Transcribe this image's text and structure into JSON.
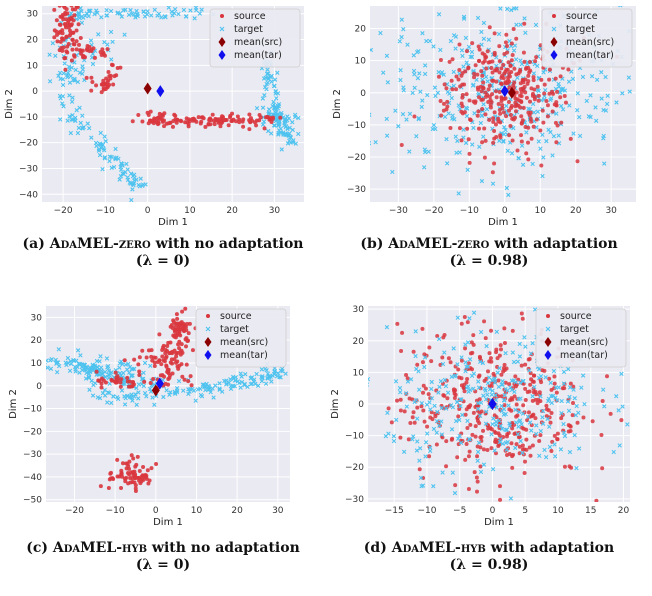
{
  "colors": {
    "source": "#d9363e",
    "target": "#4fc3ef",
    "mean_src": "#8b0000",
    "mean_tar": "#1010ee",
    "background": "#eaeaf2"
  },
  "legend_labels": [
    "source",
    "target",
    "mean(src)",
    "mean(tar)"
  ],
  "chart_data": [
    {
      "type": "scatter",
      "xlabel": "Dim 1",
      "ylabel": "Dim 2",
      "xlim": [
        -25,
        37
      ],
      "ylim": [
        -43,
        33
      ],
      "xticks": [
        -20,
        -10,
        0,
        10,
        20,
        30
      ],
      "yticks": [
        -40,
        -30,
        -20,
        -10,
        0,
        10,
        20,
        30
      ],
      "legend": "top-right",
      "mean_src": [
        0,
        1
      ],
      "mean_tar": [
        3,
        0
      ],
      "series": [
        {
          "name": "source",
          "clusters": [
            {
              "cx": -19,
              "cy": 24,
              "sx": 1.5,
              "sy": 6,
              "n": 80
            },
            {
              "cx": -14,
              "cy": 15,
              "sx": 3,
              "sy": 1.5,
              "n": 30
            },
            {
              "cx": -11,
              "cy": 3,
              "sx": 1.5,
              "sy": 2,
              "n": 25
            },
            {
              "cx": -8,
              "cy": 8,
              "sx": 1.2,
              "sy": 2,
              "n": 8
            },
            {
              "cx": 3,
              "cy": -10,
              "sx": 3,
              "sy": 2,
              "n": 20
            }
          ],
          "lines": [
            {
              "x0": 0,
              "y0": -12,
              "x1": 31,
              "y1": -11,
              "n": 110,
              "jitter": 1
            }
          ]
        },
        {
          "name": "target",
          "clusters": [
            {
              "cx": 31,
              "cy": -12,
              "sx": 2,
              "sy": 3,
              "n": 50
            },
            {
              "cx": -16,
              "cy": 29,
              "sx": 4,
              "sy": 1.2,
              "n": 20
            },
            {
              "cx": 5,
              "cy": 30,
              "sx": 5,
              "sy": 1.5,
              "n": 25
            }
          ],
          "lines": [
            {
              "x0": -15,
              "y0": 30,
              "x1": 0,
              "y1": 30,
              "n": 30,
              "jitter": 1.2
            },
            {
              "x0": -20,
              "y0": 20,
              "x1": -18,
              "y1": -10,
              "n": 45,
              "jitter": 1.6
            },
            {
              "x0": -18,
              "y0": -10,
              "x1": -2,
              "y1": -38,
              "n": 80,
              "jitter": 1.5
            },
            {
              "x0": -18,
              "y0": 5,
              "x1": -8,
              "y1": 22,
              "n": 25,
              "jitter": 2
            },
            {
              "x0": 28,
              "y0": 13,
              "x1": 31,
              "y1": -10,
              "n": 55,
              "jitter": 1
            },
            {
              "x0": 31,
              "y0": -10,
              "x1": 35,
              "y1": -22,
              "n": 30,
              "jitter": 1
            }
          ]
        }
      ]
    },
    {
      "type": "scatter",
      "xlabel": "Dim 1",
      "ylabel": "Dim 2",
      "xlim": [
        -38,
        37
      ],
      "ylim": [
        -34,
        27
      ],
      "xticks": [
        -30,
        -20,
        -10,
        0,
        10,
        20,
        30
      ],
      "yticks": [
        -30,
        -20,
        -10,
        0,
        10,
        20
      ],
      "legend": "top-right",
      "mean_src": [
        2,
        0
      ],
      "mean_tar": [
        0,
        0.5
      ],
      "series": [
        {
          "name": "source",
          "clusters": [
            {
              "cx": 0,
              "cy": 0,
              "sx": 9,
              "sy": 9,
              "n": 330
            }
          ],
          "lines": []
        },
        {
          "name": "target",
          "clusters": [
            {
              "cx": -2,
              "cy": 2,
              "sx": 18,
              "sy": 13,
              "n": 420
            }
          ],
          "lines": []
        }
      ]
    },
    {
      "type": "scatter",
      "xlabel": "Dim 1",
      "ylabel": "Dim 2",
      "xlim": [
        -27,
        33
      ],
      "ylim": [
        -51,
        35
      ],
      "xticks": [
        -20,
        -10,
        0,
        10,
        20,
        30
      ],
      "yticks": [
        -50,
        -40,
        -30,
        -20,
        -10,
        0,
        10,
        20,
        30
      ],
      "legend": "top-right",
      "mean_src": [
        0,
        -2
      ],
      "mean_tar": [
        1,
        1
      ],
      "series": [
        {
          "name": "source",
          "clusters": [
            {
              "cx": -6,
              "cy": -40,
              "sx": 2.5,
              "sy": 3.5,
              "n": 75
            },
            {
              "cx": 6,
              "cy": 25,
              "sx": 1.2,
              "sy": 4,
              "n": 55
            },
            {
              "cx": 4,
              "cy": 10,
              "sx": 2.5,
              "sy": 5,
              "n": 60
            },
            {
              "cx": -1,
              "cy": 12,
              "sx": 2.5,
              "sy": 2,
              "n": 20
            },
            {
              "cx": -8,
              "cy": 2,
              "sx": 4,
              "sy": 1.5,
              "n": 40
            }
          ],
          "lines": []
        },
        {
          "name": "target",
          "clusters": [
            {
              "cx": -10,
              "cy": 8,
              "sx": 6,
              "sy": 3,
              "n": 30
            }
          ],
          "lines": [
            {
              "x0": -26,
              "y0": 12,
              "x1": -5,
              "y1": 2,
              "n": 120,
              "jitter": 1.8
            },
            {
              "x0": -14,
              "y0": -4,
              "x1": -2,
              "y1": -6,
              "n": 35,
              "jitter": 1.8
            },
            {
              "x0": -5,
              "y0": 1,
              "x1": 10,
              "y1": -3,
              "n": 40,
              "jitter": 2
            },
            {
              "x0": 10,
              "y0": -2,
              "x1": 32,
              "y1": 6,
              "n": 90,
              "jitter": 1.5
            }
          ]
        }
      ]
    },
    {
      "type": "scatter",
      "xlabel": "Dim 1",
      "ylabel": "Dim 2",
      "xlim": [
        -19,
        21
      ],
      "ylim": [
        -31,
        31
      ],
      "xticks": [
        -15,
        -10,
        -5,
        0,
        5,
        10,
        15,
        20
      ],
      "yticks": [
        -30,
        -20,
        -10,
        0,
        10,
        20,
        30
      ],
      "legend": "top-right",
      "mean_src": [
        0,
        0
      ],
      "mean_tar": [
        0,
        0
      ],
      "series": [
        {
          "name": "source",
          "clusters": [
            {
              "cx": 0,
              "cy": 0,
              "sx": 7,
              "sy": 12,
              "n": 420
            }
          ],
          "lines": []
        },
        {
          "name": "target",
          "clusters": [
            {
              "cx": 0,
              "cy": 0,
              "sx": 8,
              "sy": 11,
              "n": 300
            }
          ],
          "lines": []
        }
      ]
    }
  ],
  "captions": [
    {
      "label": "(a)",
      "sc": "AdaMEL-zero",
      "rest": "with no adaptation",
      "lambda": "(λ = 0)"
    },
    {
      "label": "(b)",
      "sc": "AdaMEL-zero",
      "rest": "with adaptation",
      "lambda": "(λ = 0.98)"
    },
    {
      "label": "(c)",
      "sc": "AdaMEL-hyb",
      "rest": "with no adaptation",
      "lambda": "(λ = 0)"
    },
    {
      "label": "(d)",
      "sc": "AdaMEL-hyb",
      "rest": "with adaptation",
      "lambda": "(λ = 0.98)"
    }
  ]
}
